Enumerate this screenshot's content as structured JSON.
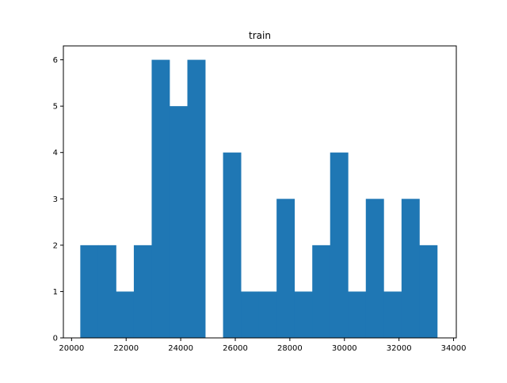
{
  "chart_data": {
    "type": "bar",
    "title": "train",
    "xlabel": "",
    "ylabel": "",
    "bar_color": "#1f77b4",
    "xlim": [
      19700,
      34100
    ],
    "ylim": [
      0,
      6.3
    ],
    "x_ticks": [
      20000,
      22000,
      24000,
      26000,
      28000,
      30000,
      32000,
      34000
    ],
    "x_tick_labels": [
      "20000",
      "22000",
      "24000",
      "26000",
      "28000",
      "30000",
      "32000",
      "34000"
    ],
    "y_ticks": [
      0,
      1,
      2,
      3,
      4,
      5,
      6
    ],
    "y_tick_labels": [
      "0",
      "1",
      "2",
      "3",
      "4",
      "5",
      "6"
    ],
    "bin_start": 20320,
    "bin_width": 654,
    "counts": [
      2,
      2,
      1,
      2,
      6,
      5,
      6,
      0,
      4,
      1,
      1,
      3,
      1,
      2,
      4,
      1,
      3,
      1,
      3,
      2
    ],
    "grid": false,
    "legend": "none"
  }
}
